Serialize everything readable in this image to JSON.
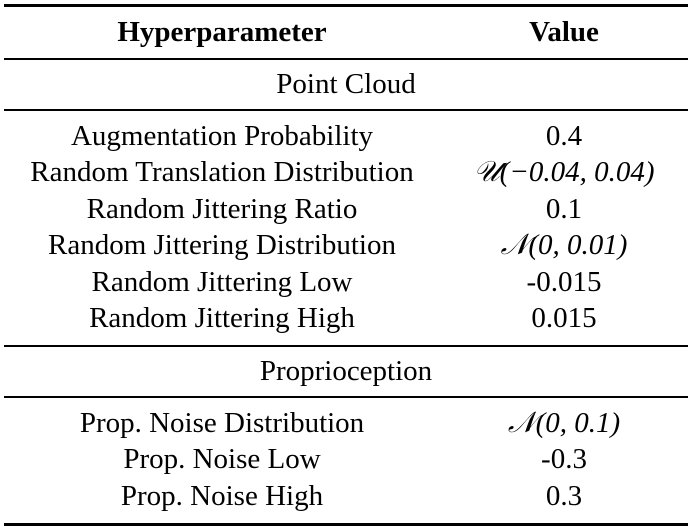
{
  "table": {
    "header": {
      "name": "Hyperparameter",
      "value": "Value"
    },
    "sections": [
      {
        "title": "Point Cloud",
        "rows": [
          {
            "name": "Augmentation Probability",
            "value": "0.4"
          },
          {
            "name": "Random Translation Distribution",
            "value": "𝒰(−0.04, 0.04)"
          },
          {
            "name": "Random Jittering Ratio",
            "value": "0.1"
          },
          {
            "name": "Random Jittering Distribution",
            "value": "𝒩(0, 0.01)"
          },
          {
            "name": "Random Jittering Low",
            "value": "-0.015"
          },
          {
            "name": "Random Jittering High",
            "value": "0.015"
          }
        ]
      },
      {
        "title": "Proprioception",
        "rows": [
          {
            "name": "Prop. Noise Distribution",
            "value": "𝒩(0, 0.1)"
          },
          {
            "name": "Prop. Noise Low",
            "value": "-0.3"
          },
          {
            "name": "Prop. Noise High",
            "value": "0.3"
          }
        ]
      }
    ]
  }
}
